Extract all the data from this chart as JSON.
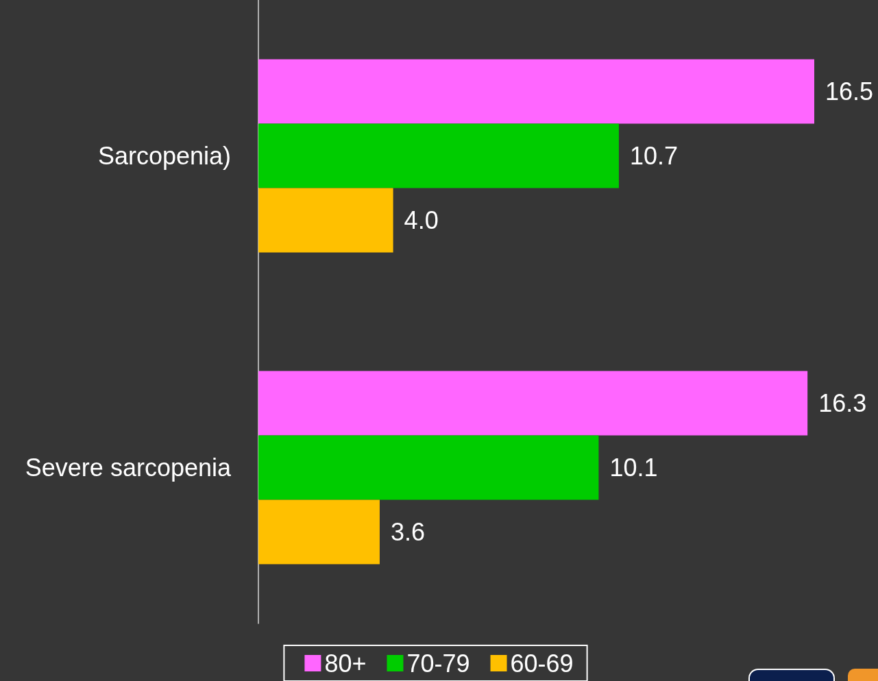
{
  "chart_data": {
    "type": "bar",
    "orientation": "horizontal",
    "categories": [
      "Sarcopenia)",
      "Severe sarcopenia"
    ],
    "series": [
      {
        "name": "80+",
        "color": "#ff66ff",
        "values": [
          16.5,
          16.3
        ],
        "value_labels": [
          "16.5",
          "16.3"
        ]
      },
      {
        "name": "70-79",
        "color": "#00cc00",
        "values": [
          10.7,
          10.1
        ],
        "value_labels": [
          "10.7",
          "10.1"
        ]
      },
      {
        "name": "60-69",
        "color": "#ffc000",
        "values": [
          4.0,
          3.6
        ],
        "value_labels": [
          "4.0",
          "3.6"
        ]
      }
    ],
    "legend": "bottom",
    "tick_labels": "y"
  }
}
